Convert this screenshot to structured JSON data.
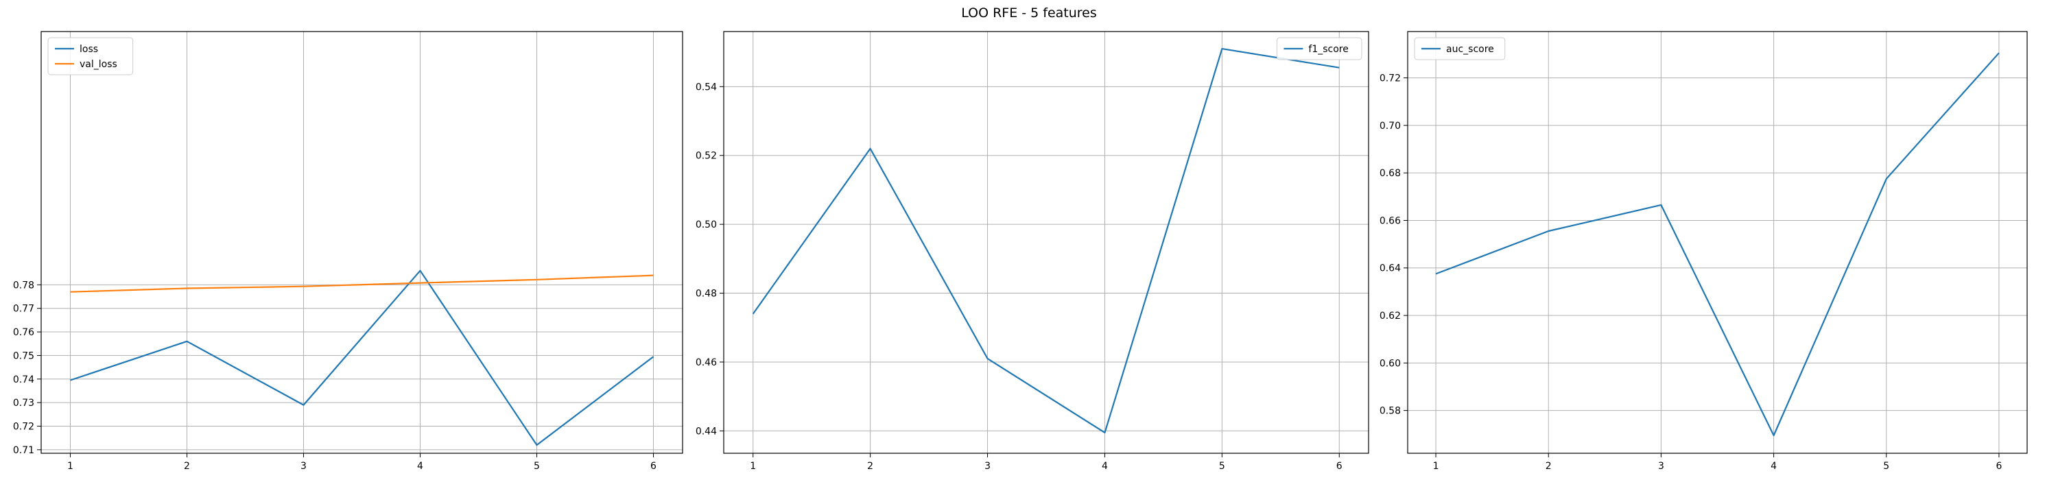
{
  "figure": {
    "title": "LOO RFE - 5 features"
  },
  "chart_data": [
    {
      "type": "line",
      "x": [
        1,
        2,
        3,
        4,
        5,
        6
      ],
      "xticks": [
        "1",
        "2",
        "3",
        "4",
        "5",
        "6"
      ],
      "xlim": [
        0.75,
        6.25
      ],
      "ylim": [
        0.7085,
        0.8875
      ],
      "yticks": [
        "0.71",
        "0.72",
        "0.73",
        "0.74",
        "0.75",
        "0.76",
        "0.77",
        "0.78"
      ],
      "grid": true,
      "legend_loc": "upper-left",
      "series": [
        {
          "name": "loss",
          "color": "#1f77b4",
          "values": [
            0.7395,
            0.756,
            0.729,
            0.786,
            0.712,
            0.7495
          ]
        },
        {
          "name": "val_loss",
          "color": "#ff7f0e",
          "values": [
            0.777,
            0.7785,
            0.7793,
            0.7808,
            0.7822,
            0.784
          ]
        }
      ]
    },
    {
      "type": "line",
      "x": [
        1,
        2,
        3,
        4,
        5,
        6
      ],
      "xticks": [
        "1",
        "2",
        "3",
        "4",
        "5",
        "6"
      ],
      "xlim": [
        0.75,
        6.25
      ],
      "ylim": [
        0.4335,
        0.556
      ],
      "yticks": [
        "0.44",
        "0.46",
        "0.48",
        "0.50",
        "0.52",
        "0.54"
      ],
      "grid": true,
      "legend_loc": "upper-right",
      "series": [
        {
          "name": "f1_score",
          "color": "#1f77b4",
          "values": [
            0.474,
            0.522,
            0.461,
            0.4395,
            0.551,
            0.5455
          ]
        }
      ]
    },
    {
      "type": "line",
      "x": [
        1,
        2,
        3,
        4,
        5,
        6
      ],
      "xticks": [
        "1",
        "2",
        "3",
        "4",
        "5",
        "6"
      ],
      "xlim": [
        0.75,
        6.25
      ],
      "ylim": [
        0.562,
        0.7395
      ],
      "yticks": [
        "0.58",
        "0.60",
        "0.62",
        "0.64",
        "0.66",
        "0.68",
        "0.70",
        "0.72"
      ],
      "grid": true,
      "legend_loc": "upper-left",
      "series": [
        {
          "name": "auc_score",
          "color": "#1f77b4",
          "values": [
            0.6375,
            0.6555,
            0.6665,
            0.5695,
            0.6775,
            0.7305
          ]
        }
      ]
    }
  ]
}
